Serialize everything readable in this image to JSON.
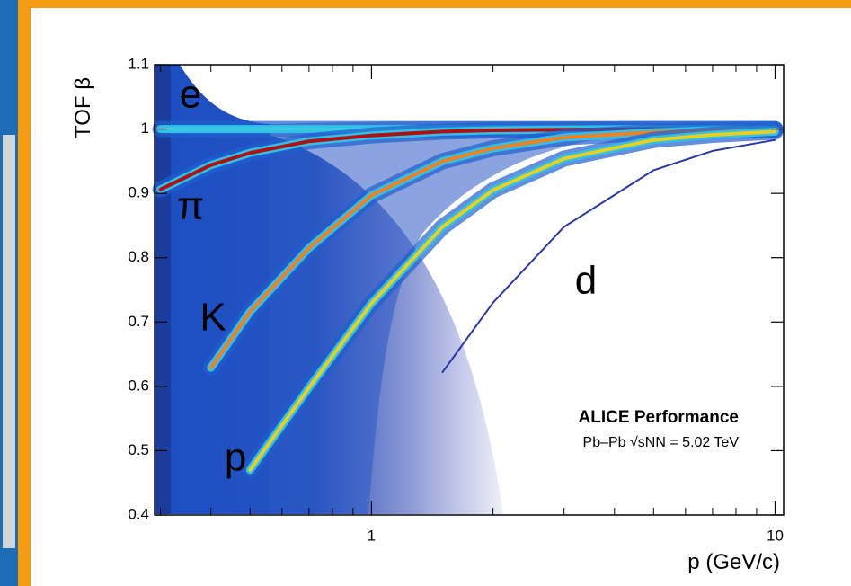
{
  "chart_data": {
    "type": "density",
    "y_label": "TOF β",
    "x_label": "p (GeV/c)",
    "annotations": [
      "ALICE Performance",
      "Pb–Pb √sNN = 5.02 TeV"
    ],
    "log_x": true,
    "xlim": [
      0.29,
      10.5
    ],
    "xticks": [
      1,
      10
    ],
    "ylim": [
      0.4,
      1.1
    ],
    "yticks": [
      0.4,
      0.5,
      0.6,
      0.7,
      0.8,
      0.9,
      1,
      1.1
    ],
    "x": [
      0.3,
      0.4,
      0.5,
      0.7,
      1,
      1.5,
      2,
      3,
      5,
      7,
      10
    ],
    "series": [
      {
        "name": "e",
        "color": "#3cc8e0",
        "values": [
          1,
          1,
          1,
          1,
          1,
          1,
          1,
          1,
          1,
          1,
          1
        ]
      },
      {
        "name": "π",
        "color": "#b01010",
        "values": [
          0.906,
          0.944,
          0.963,
          0.981,
          0.99,
          0.996,
          0.998,
          0.999,
          1,
          1,
          1
        ]
      },
      {
        "name": "K",
        "color": "#f08020",
        "values": [
          null,
          0.629,
          0.716,
          0.815,
          0.897,
          0.95,
          0.97,
          0.987,
          0.995,
          0.998,
          0.999
        ]
      },
      {
        "name": "p",
        "color": "#e8d020",
        "values": [
          null,
          null,
          0.47,
          0.598,
          0.729,
          0.848,
          0.905,
          0.954,
          0.983,
          0.991,
          0.996
        ]
      },
      {
        "name": "d",
        "color": "#2838a8",
        "values": [
          null,
          null,
          null,
          null,
          null,
          0.622,
          0.73,
          0.848,
          0.936,
          0.966,
          0.983
        ]
      }
    ]
  }
}
